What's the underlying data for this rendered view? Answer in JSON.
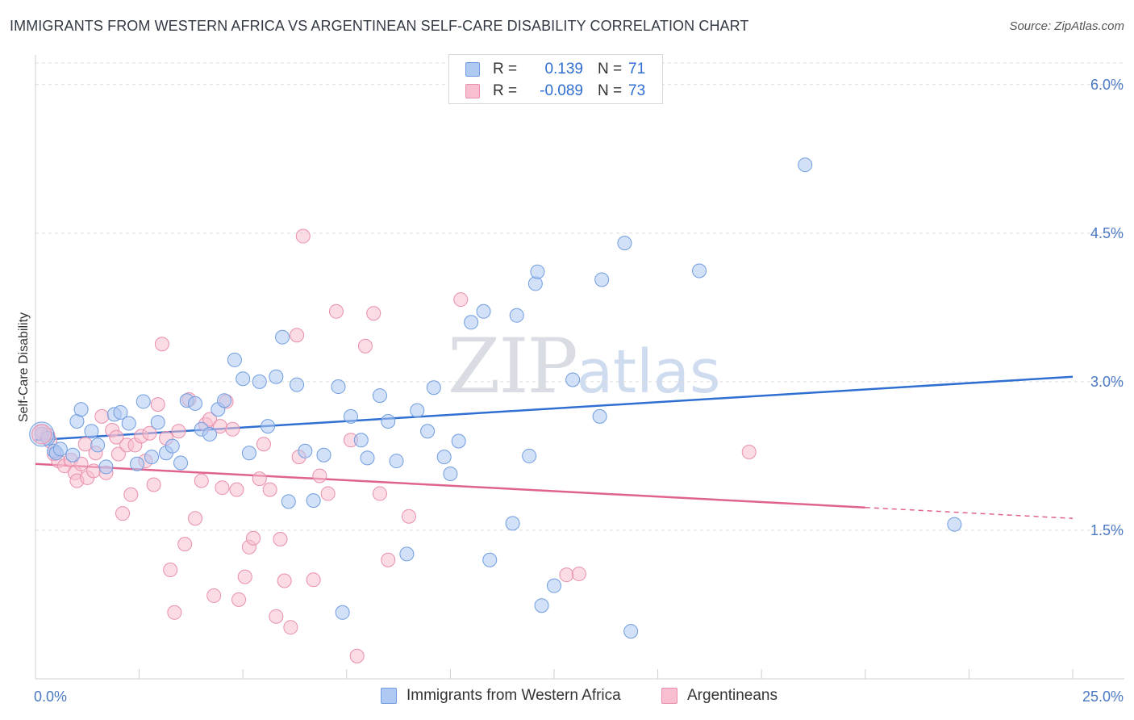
{
  "title": "IMMIGRANTS FROM WESTERN AFRICA VS ARGENTINEAN SELF-CARE DISABILITY CORRELATION CHART",
  "source": "Source: ZipAtlas.com",
  "watermark": {
    "zip": "ZIP",
    "atlas": "atlas"
  },
  "legend": {
    "rows": [
      {
        "swatch_color": "#aec9f2",
        "border_color": "#6f9de0",
        "r_label": "R =",
        "r_value": "0.139",
        "n_label": "N =",
        "n_value": "71"
      },
      {
        "swatch_color": "#f7bfd0",
        "border_color": "#e98fab",
        "r_label": "R =",
        "r_value": "-0.089",
        "n_label": "N =",
        "n_value": "73"
      }
    ]
  },
  "bottom_legend": [
    {
      "label": "Immigrants from Western Africa",
      "swatch_color": "#aec9f2",
      "border_color": "#6f9de0"
    },
    {
      "label": "Argentineans",
      "swatch_color": "#f7bfd0",
      "border_color": "#e98fab"
    }
  ],
  "chart_data": {
    "type": "scatter",
    "title": "IMMIGRANTS FROM WESTERN AFRICA VS ARGENTINEAN SELF-CARE DISABILITY CORRELATION CHART",
    "xlabel": "",
    "ylabel": "Self-Care Disability",
    "xlim": [
      0,
      25
    ],
    "ylim": [
      0,
      6.3
    ],
    "x_tick_labels": [
      {
        "value": 0,
        "label": "0.0%"
      },
      {
        "value": 25,
        "label": "25.0%"
      }
    ],
    "x_minor_ticks": [
      2.5,
      5,
      7.5,
      10,
      12.5,
      15,
      17.5,
      20,
      22.5,
      25
    ],
    "y_ticks": [
      {
        "value": 1.5,
        "label": "1.5%"
      },
      {
        "value": 3.0,
        "label": "3.0%"
      },
      {
        "value": 4.5,
        "label": "4.5%"
      },
      {
        "value": 6.0,
        "label": "6.0%"
      }
    ],
    "grid": "horizontal dashed",
    "series": [
      {
        "name": "Immigrants from Western Africa",
        "color": "#aec9f2",
        "stroke": "#6f9de0",
        "trend": {
          "x": [
            0,
            25
          ],
          "y": [
            2.41,
            3.05
          ],
          "color": "#2f6fd1"
        },
        "points": [
          [
            0.15,
            2.47
          ],
          [
            0.3,
            2.43
          ],
          [
            0.45,
            2.3
          ],
          [
            0.5,
            2.28
          ],
          [
            0.6,
            2.32
          ],
          [
            0.9,
            2.26
          ],
          [
            1.0,
            2.6
          ],
          [
            1.1,
            2.72
          ],
          [
            1.35,
            2.5
          ],
          [
            1.5,
            2.36
          ],
          [
            1.7,
            2.14
          ],
          [
            1.9,
            2.67
          ],
          [
            2.05,
            2.69
          ],
          [
            2.25,
            2.58
          ],
          [
            2.45,
            2.17
          ],
          [
            2.6,
            2.8
          ],
          [
            2.8,
            2.24
          ],
          [
            2.95,
            2.59
          ],
          [
            3.15,
            2.28
          ],
          [
            3.3,
            2.35
          ],
          [
            3.5,
            2.18
          ],
          [
            3.65,
            2.81
          ],
          [
            3.85,
            2.78
          ],
          [
            4.0,
            2.52
          ],
          [
            4.2,
            2.47
          ],
          [
            4.4,
            2.72
          ],
          [
            4.55,
            2.81
          ],
          [
            4.8,
            3.22
          ],
          [
            5.0,
            3.03
          ],
          [
            5.15,
            2.28
          ],
          [
            5.4,
            3.0
          ],
          [
            5.6,
            2.55
          ],
          [
            5.8,
            3.05
          ],
          [
            5.95,
            3.45
          ],
          [
            6.1,
            1.79
          ],
          [
            6.3,
            2.97
          ],
          [
            6.5,
            2.3
          ],
          [
            6.7,
            1.8
          ],
          [
            6.95,
            2.26
          ],
          [
            7.3,
            2.95
          ],
          [
            7.4,
            0.67
          ],
          [
            7.6,
            2.65
          ],
          [
            7.85,
            2.41
          ],
          [
            8.0,
            2.23
          ],
          [
            8.3,
            2.86
          ],
          [
            8.5,
            2.6
          ],
          [
            8.7,
            2.2
          ],
          [
            8.95,
            1.26
          ],
          [
            9.2,
            2.71
          ],
          [
            9.45,
            2.5
          ],
          [
            9.6,
            2.94
          ],
          [
            9.85,
            2.24
          ],
          [
            10.0,
            2.07
          ],
          [
            10.2,
            2.4
          ],
          [
            10.5,
            3.6
          ],
          [
            10.8,
            3.71
          ],
          [
            10.95,
            1.2
          ],
          [
            11.5,
            1.57
          ],
          [
            11.6,
            3.67
          ],
          [
            11.9,
            2.25
          ],
          [
            12.05,
            3.99
          ],
          [
            12.1,
            4.11
          ],
          [
            12.2,
            0.74
          ],
          [
            12.5,
            0.94
          ],
          [
            12.95,
            3.02
          ],
          [
            13.6,
            2.65
          ],
          [
            13.65,
            4.03
          ],
          [
            14.2,
            4.4
          ],
          [
            14.35,
            0.48
          ],
          [
            16.0,
            4.12
          ],
          [
            18.55,
            5.19
          ],
          [
            22.15,
            1.56
          ]
        ]
      },
      {
        "name": "Argentineans",
        "color": "#f7bfd0",
        "stroke": "#e98fab",
        "trend": {
          "x": [
            0,
            20.0
          ],
          "y": [
            2.17,
            1.73
          ],
          "color": "#e0638f",
          "dashed_to": [
            25,
            1.62
          ]
        },
        "points": [
          [
            0.15,
            2.5
          ],
          [
            0.3,
            2.46
          ],
          [
            0.35,
            2.4
          ],
          [
            0.45,
            2.27
          ],
          [
            0.55,
            2.2
          ],
          [
            0.7,
            2.15
          ],
          [
            0.85,
            2.21
          ],
          [
            0.95,
            2.08
          ],
          [
            1.0,
            2.0
          ],
          [
            1.1,
            2.17
          ],
          [
            1.2,
            2.37
          ],
          [
            1.25,
            2.03
          ],
          [
            1.4,
            2.1
          ],
          [
            1.45,
            2.28
          ],
          [
            1.6,
            2.65
          ],
          [
            1.7,
            2.08
          ],
          [
            1.85,
            2.51
          ],
          [
            1.95,
            2.44
          ],
          [
            2.0,
            2.27
          ],
          [
            2.1,
            1.67
          ],
          [
            2.2,
            2.36
          ],
          [
            2.3,
            1.86
          ],
          [
            2.4,
            2.36
          ],
          [
            2.55,
            2.45
          ],
          [
            2.65,
            2.2
          ],
          [
            2.75,
            2.48
          ],
          [
            2.85,
            1.96
          ],
          [
            2.95,
            2.77
          ],
          [
            3.05,
            3.38
          ],
          [
            3.15,
            2.43
          ],
          [
            3.25,
            1.1
          ],
          [
            3.35,
            0.67
          ],
          [
            3.45,
            2.5
          ],
          [
            3.6,
            1.36
          ],
          [
            3.7,
            2.82
          ],
          [
            3.85,
            1.62
          ],
          [
            4.0,
            2.0
          ],
          [
            4.1,
            2.57
          ],
          [
            4.2,
            2.62
          ],
          [
            4.3,
            0.84
          ],
          [
            4.45,
            2.55
          ],
          [
            4.5,
            1.93
          ],
          [
            4.6,
            2.8
          ],
          [
            4.75,
            2.52
          ],
          [
            4.85,
            1.91
          ],
          [
            4.9,
            0.8
          ],
          [
            5.05,
            1.03
          ],
          [
            5.15,
            1.33
          ],
          [
            5.25,
            1.42
          ],
          [
            5.4,
            2.02
          ],
          [
            5.5,
            2.37
          ],
          [
            5.65,
            1.91
          ],
          [
            5.8,
            0.63
          ],
          [
            5.9,
            1.41
          ],
          [
            6.0,
            0.99
          ],
          [
            6.15,
            0.52
          ],
          [
            6.3,
            3.47
          ],
          [
            6.35,
            2.24
          ],
          [
            6.45,
            4.47
          ],
          [
            6.7,
            1.0
          ],
          [
            6.85,
            2.05
          ],
          [
            7.05,
            1.87
          ],
          [
            7.25,
            3.71
          ],
          [
            7.6,
            2.41
          ],
          [
            7.75,
            0.23
          ],
          [
            7.95,
            3.36
          ],
          [
            8.15,
            3.69
          ],
          [
            8.3,
            1.87
          ],
          [
            8.5,
            1.2
          ],
          [
            9.0,
            1.64
          ],
          [
            10.25,
            3.83
          ],
          [
            12.8,
            1.05
          ],
          [
            13.1,
            1.06
          ],
          [
            17.2,
            2.29
          ]
        ]
      }
    ]
  }
}
